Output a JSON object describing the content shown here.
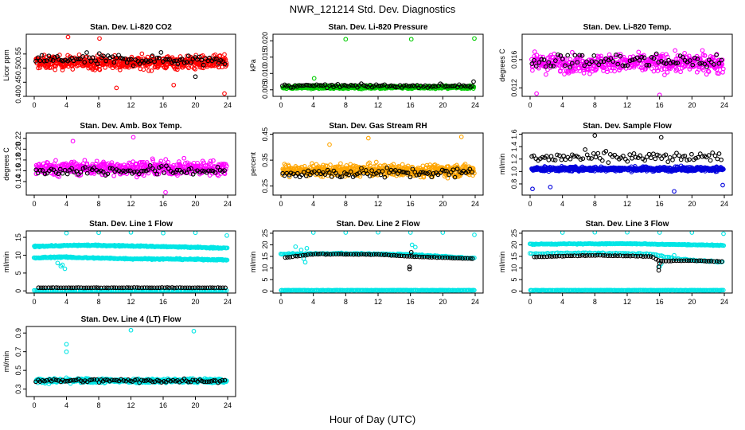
{
  "figure": {
    "title": "NWR_121214  Std. Dev. Diagnostics",
    "xlabel": "Hour of Day (UTC)"
  },
  "chart_data": [
    {
      "type": "scatter",
      "title": "Stan. Dev. Li-820 CO2",
      "ylabel": "Licor ppm",
      "xlim": [
        0,
        24
      ],
      "ylim": [
        0.4,
        0.62
      ],
      "xticks": [
        "0",
        "4",
        "8",
        "12",
        "16",
        "20",
        "24"
      ],
      "yticks": [
        "0.40",
        "0.45",
        "0.50",
        "0.55"
      ],
      "series": [
        {
          "color": "#ff0000",
          "style": "band",
          "center": 0.52,
          "spread": 0.04,
          "count": 520,
          "outliers": [
            [
              8.1,
              0.605
            ],
            [
              10.2,
              0.43
            ],
            [
              23.6,
              0.41
            ],
            [
              17.3,
              0.44
            ],
            [
              4.2,
              0.61
            ]
          ]
        },
        {
          "color": "#000000",
          "style": "band",
          "center": 0.53,
          "spread": 0.035,
          "count": 90,
          "outliers": [
            [
              20.0,
              0.47
            ]
          ]
        }
      ]
    },
    {
      "type": "scatter",
      "title": "Stan. Dev. Li-820 Pressure",
      "ylabel": "kPa",
      "xlim": [
        0,
        24
      ],
      "ylim": [
        0.003,
        0.022
      ],
      "xticks": [
        "0",
        "4",
        "8",
        "12",
        "16",
        "20",
        "24"
      ],
      "yticks": [
        "0.005",
        "0.010",
        "0.015",
        "0.020"
      ],
      "series": [
        {
          "color": "#00cc00",
          "style": "band",
          "center": 0.0058,
          "spread": 0.0008,
          "count": 520,
          "outliers": [
            [
              8.0,
              0.0205
            ],
            [
              16.1,
              0.0205
            ],
            [
              23.9,
              0.0207
            ],
            [
              4.1,
              0.0085
            ]
          ]
        },
        {
          "color": "#000000",
          "style": "band",
          "center": 0.0062,
          "spread": 0.0008,
          "count": 90,
          "outliers": [
            [
              23.8,
              0.0075
            ]
          ]
        }
      ]
    },
    {
      "type": "scatter",
      "title": "Stan. Dev. Li-820 Temp.",
      "ylabel": "degrees C",
      "xlim": [
        0,
        24
      ],
      "ylim": [
        0.0108,
        0.0196
      ],
      "xticks": [
        "0",
        "4",
        "8",
        "12",
        "16",
        "20",
        "24"
      ],
      "yticks": [
        "0.012",
        "0.016"
      ],
      "series": [
        {
          "color": "#ff00ff",
          "style": "band",
          "center": 0.0155,
          "spread": 0.0022,
          "count": 480,
          "outliers": [
            [
              0.8,
              0.0112
            ],
            [
              16.0,
              0.011
            ]
          ]
        },
        {
          "color": "#000000",
          "style": "band",
          "center": 0.0158,
          "spread": 0.0018,
          "count": 80,
          "outliers": []
        }
      ]
    },
    {
      "type": "scatter",
      "title": "Stan. Dev. Amb. Box Temp.",
      "ylabel": "degrees C",
      "xlim": [
        0,
        24
      ],
      "ylim": [
        0.115,
        0.23
      ],
      "xticks": [
        "0",
        "4",
        "8",
        "12",
        "16",
        "20",
        "24"
      ],
      "yticks": [
        "0.14",
        "0.16",
        "0.18",
        "0.20",
        "0.22"
      ],
      "series": [
        {
          "color": "#ff00ff",
          "style": "band",
          "center": 0.165,
          "spread": 0.022,
          "count": 480,
          "outliers": [
            [
              12.3,
              0.222
            ],
            [
              16.3,
              0.12
            ],
            [
              4.8,
              0.215
            ]
          ]
        },
        {
          "color": "#000000",
          "style": "band",
          "center": 0.16,
          "spread": 0.015,
          "count": 85,
          "outliers": []
        }
      ]
    },
    {
      "type": "scatter",
      "title": "Stan. Dev. Gas Stream RH",
      "ylabel": "percent",
      "xlim": [
        0,
        24
      ],
      "ylim": [
        0.215,
        0.455
      ],
      "xticks": [
        "0",
        "4",
        "8",
        "12",
        "16",
        "20",
        "24"
      ],
      "yticks": [
        "0.25",
        "0.35",
        "0.45"
      ],
      "series": [
        {
          "color": "#ffa500",
          "style": "band",
          "center": 0.31,
          "spread": 0.038,
          "count": 560,
          "outliers": [
            [
              10.8,
              0.435
            ],
            [
              22.3,
              0.44
            ],
            [
              6.0,
              0.41
            ]
          ]
        },
        {
          "color": "#000000",
          "style": "band",
          "center": 0.3,
          "spread": 0.032,
          "count": 90,
          "outliers": []
        }
      ]
    },
    {
      "type": "scatter",
      "title": "Stan. Dev. Sample Flow",
      "ylabel": "ml/min",
      "xlim": [
        0,
        24
      ],
      "ylim": [
        0.62,
        1.62
      ],
      "xticks": [
        "0",
        "4",
        "8",
        "12",
        "16",
        "20",
        "24"
      ],
      "yticks": [
        "0.8",
        "1.0",
        "1.2",
        "1.4",
        "1.6"
      ],
      "series": [
        {
          "color": "#0000dd",
          "style": "band",
          "center": 1.04,
          "spread": 0.06,
          "count": 560,
          "outliers": [
            [
              0.3,
              0.72
            ],
            [
              17.8,
              0.68
            ],
            [
              23.8,
              0.78
            ],
            [
              2.5,
              0.75
            ]
          ]
        },
        {
          "color": "#000000",
          "style": "band",
          "center": 1.22,
          "spread": 0.15,
          "count": 90,
          "outliers": [
            [
              8.0,
              1.58
            ],
            [
              16.2,
              1.55
            ]
          ]
        }
      ]
    },
    {
      "type": "scatter",
      "title": "Stan. Dev. Line 1 Flow",
      "ylabel": "ml/min",
      "xlim": [
        0,
        24
      ],
      "ylim": [
        -0.6,
        16.8
      ],
      "xticks": [
        "0",
        "4",
        "8",
        "12",
        "16",
        "20",
        "24"
      ],
      "yticks": [
        "0",
        "5",
        "10",
        "15"
      ],
      "series": [
        {
          "color": "#00e5e5",
          "style": "trend",
          "points": [
            [
              0,
              12.5
            ],
            [
              6,
              12.8
            ],
            [
              12,
              12.6
            ],
            [
              18,
              12.3
            ],
            [
              24,
              12.0
            ]
          ],
          "spread": 0.3,
          "count": 300,
          "outliers": [
            [
              4.0,
              16.2
            ],
            [
              8.0,
              16.3
            ],
            [
              12.0,
              16.4
            ],
            [
              16.0,
              16.2
            ],
            [
              20.0,
              16.3
            ],
            [
              23.9,
              15.5
            ]
          ]
        },
        {
          "color": "#00e5e5",
          "style": "trend",
          "points": [
            [
              0,
              9.2
            ],
            [
              3,
              9.5
            ],
            [
              6,
              9.3
            ],
            [
              12,
              9.0
            ],
            [
              18,
              8.9
            ],
            [
              24,
              8.7
            ]
          ],
          "spread": 0.3,
          "count": 300,
          "outliers": [
            [
              2.9,
              7.8
            ],
            [
              3.3,
              6.9
            ],
            [
              3.8,
              6.2
            ],
            [
              3.5,
              7.3
            ]
          ]
        },
        {
          "color": "#00e5e5",
          "style": "trend",
          "points": [
            [
              0,
              0.1
            ],
            [
              24,
              0.1
            ]
          ],
          "spread": 0.05,
          "count": 160,
          "outliers": []
        },
        {
          "color": "#000000",
          "style": "trend",
          "points": [
            [
              0.5,
              0.9
            ],
            [
              24,
              0.9
            ]
          ],
          "spread": 0.1,
          "count": 75,
          "outliers": []
        }
      ]
    },
    {
      "type": "scatter",
      "title": "Stan. Dev. Line 2 Flow",
      "ylabel": "ml/min",
      "xlim": [
        0,
        24
      ],
      "ylim": [
        -0.8,
        26
      ],
      "xticks": [
        "0",
        "4",
        "8",
        "12",
        "16",
        "20",
        "24"
      ],
      "yticks": [
        "0",
        "5",
        "10",
        "15",
        "20",
        "25"
      ],
      "series": [
        {
          "color": "#00e5e5",
          "style": "trend",
          "points": [
            [
              0,
              0.4
            ],
            [
              24,
              0.4
            ]
          ],
          "spread": 0.1,
          "count": 200,
          "outliers": []
        },
        {
          "color": "#00e5e5",
          "style": "trend",
          "points": [
            [
              0,
              16.0
            ],
            [
              8,
              16.3
            ],
            [
              16,
              15.8
            ],
            [
              24,
              14.2
            ]
          ],
          "spread": 0.4,
          "count": 180,
          "outliers": [
            [
              4.0,
              25.3
            ],
            [
              8.0,
              25.3
            ],
            [
              12.0,
              25.4
            ],
            [
              16.0,
              25.3
            ],
            [
              20.0,
              25.3
            ],
            [
              23.9,
              24.3
            ],
            [
              2.5,
              17.8
            ],
            [
              3.2,
              18.5
            ],
            [
              1.8,
              19.2
            ],
            [
              3.0,
              12.5
            ],
            [
              2.8,
              14.0
            ],
            [
              16.2,
              20.0
            ],
            [
              16.6,
              19.0
            ]
          ]
        },
        {
          "color": "#000000",
          "style": "trend",
          "points": [
            [
              0.5,
              14.5
            ],
            [
              4,
              16.0
            ],
            [
              12,
              15.8
            ],
            [
              16,
              15.0
            ],
            [
              24,
              14.0
            ]
          ],
          "spread": 0.2,
          "count": 75,
          "outliers": [
            [
              15.9,
              9.6
            ],
            [
              15.9,
              10.5
            ],
            [
              16.1,
              16.8
            ]
          ]
        }
      ]
    },
    {
      "type": "scatter",
      "title": "Stan. Dev. Line 3 Flow",
      "ylabel": "ml/min",
      "xlim": [
        0,
        24
      ],
      "ylim": [
        -0.8,
        26
      ],
      "xticks": [
        "0",
        "4",
        "8",
        "12",
        "16",
        "20",
        "24"
      ],
      "yticks": [
        "0",
        "5",
        "10",
        "15",
        "20",
        "25"
      ],
      "series": [
        {
          "color": "#00e5e5",
          "style": "trend",
          "points": [
            [
              0,
              0.4
            ],
            [
              24,
              0.4
            ]
          ],
          "spread": 0.1,
          "count": 200,
          "outliers": []
        },
        {
          "color": "#00e5e5",
          "style": "trend",
          "points": [
            [
              0,
              20.3
            ],
            [
              12,
              20.5
            ],
            [
              24,
              19.8
            ]
          ],
          "spread": 0.3,
          "count": 260,
          "outliers": [
            [
              4.0,
              25.3
            ],
            [
              8.0,
              25.4
            ],
            [
              12.0,
              25.4
            ],
            [
              16.0,
              25.3
            ],
            [
              20.0,
              25.3
            ],
            [
              23.9,
              24.8
            ]
          ]
        },
        {
          "color": "#00e5e5",
          "style": "trend",
          "points": [
            [
              0,
              16.2
            ],
            [
              8,
              16.5
            ],
            [
              15,
              16.0
            ],
            [
              18,
              14.0
            ],
            [
              24,
              12.5
            ]
          ],
          "spread": 0.4,
          "count": 120,
          "outliers": [
            [
              16.0,
              10.5
            ],
            [
              16.2,
              11.8
            ],
            [
              17.5,
              14.5
            ],
            [
              17.8,
              15.5
            ]
          ]
        },
        {
          "color": "#000000",
          "style": "trend",
          "points": [
            [
              0.5,
              14.8
            ],
            [
              8,
              15.5
            ],
            [
              15,
              15.0
            ],
            [
              16,
              13.0
            ],
            [
              20,
              13.2
            ],
            [
              24,
              12.8
            ]
          ],
          "spread": 0.2,
          "count": 75,
          "outliers": [
            [
              15.9,
              9.0
            ],
            [
              15.9,
              10.5
            ],
            [
              16.0,
              12.0
            ]
          ]
        }
      ]
    },
    {
      "type": "scatter",
      "title": "Stan. Dev. Line 4 (LT) Flow",
      "ylabel": "ml/min",
      "xlim": [
        0,
        24
      ],
      "ylim": [
        0.22,
        0.97
      ],
      "xticks": [
        "0",
        "4",
        "8",
        "12",
        "16",
        "20",
        "24"
      ],
      "yticks": [
        "0.3",
        "0.5",
        "0.7",
        "0.9"
      ],
      "series": [
        {
          "color": "#00e5e5",
          "style": "band",
          "center": 0.39,
          "spread": 0.04,
          "count": 520,
          "outliers": [
            [
              12.0,
              0.93
            ],
            [
              19.8,
              0.92
            ],
            [
              4.0,
              0.78
            ],
            [
              4.0,
              0.7
            ]
          ]
        },
        {
          "color": "#000000",
          "style": "band",
          "center": 0.39,
          "spread": 0.035,
          "count": 85,
          "outliers": []
        }
      ]
    }
  ]
}
